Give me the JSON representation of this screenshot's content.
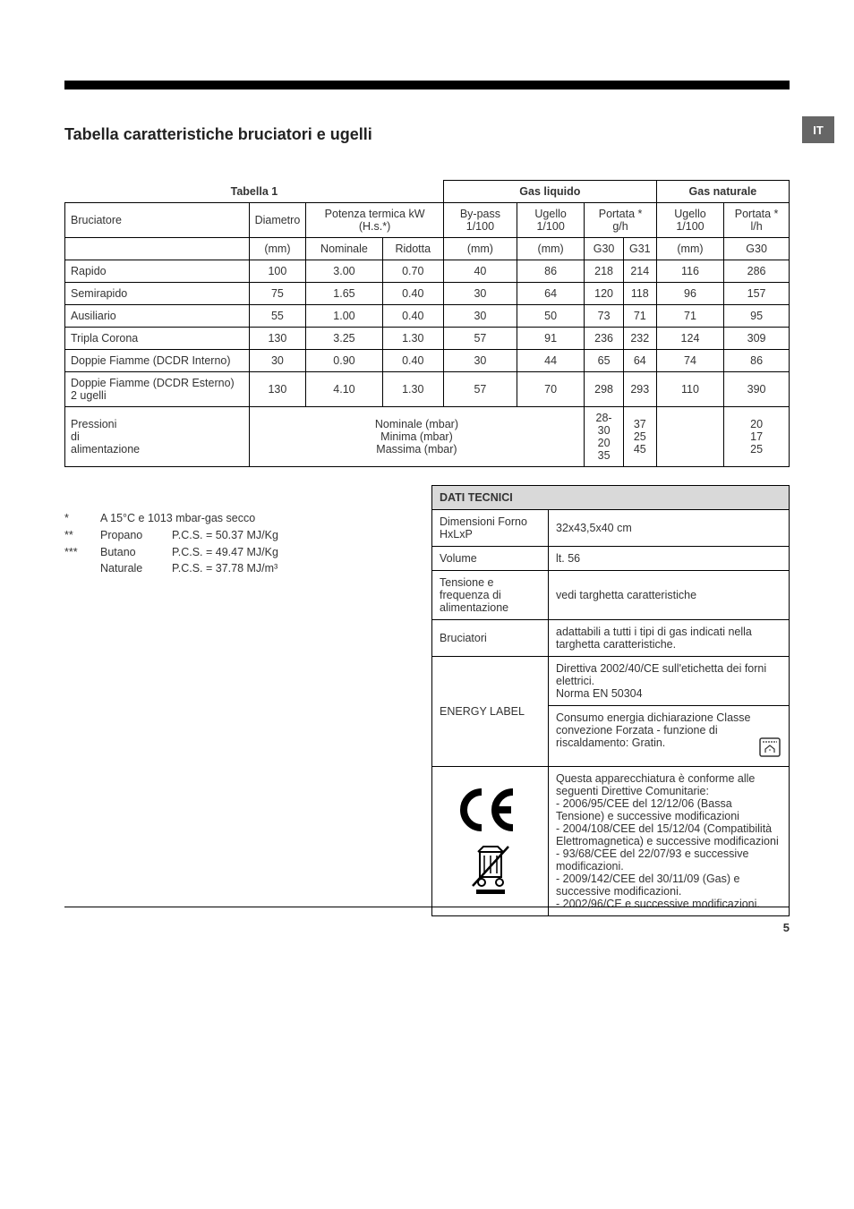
{
  "lang_tab": "IT",
  "page_number": "5",
  "section_title": "Tabella caratteristiche bruciatori e ugelli",
  "table1": {
    "label": "Tabella 1",
    "group_liquid": "Gas liquido",
    "group_natural": "Gas naturale",
    "h_bruciatore": "Bruciatore",
    "h_diametro": "Diametro",
    "h_potenza": "Potenza termica kW (H.s.*)",
    "h_bypass": "By-pass 1/100",
    "h_ugello": "Ugello 1/100",
    "h_portata_gh": "Portata * g/h",
    "h_ugello2": "Ugello 1/100",
    "h_portata_lh": "Portata * l/h",
    "u_mm": "(mm)",
    "u_nominale": "Nominale",
    "u_ridotta": "Ridotta",
    "u_g30": "G30",
    "u_g31": "G31",
    "rows": [
      {
        "name": "Rapido",
        "dia": "100",
        "nom": "3.00",
        "rid": "0.70",
        "bp": "40",
        "ug1": "86",
        "g30": "218",
        "g31": "214",
        "ug2": "116",
        "nat": "286"
      },
      {
        "name": "Semirapido",
        "dia": "75",
        "nom": "1.65",
        "rid": "0.40",
        "bp": "30",
        "ug1": "64",
        "g30": "120",
        "g31": "118",
        "ug2": "96",
        "nat": "157"
      },
      {
        "name": "Ausiliario",
        "dia": "55",
        "nom": "1.00",
        "rid": "0.40",
        "bp": "30",
        "ug1": "50",
        "g30": "73",
        "g31": "71",
        "ug2": "71",
        "nat": "95"
      },
      {
        "name": "Tripla Corona",
        "dia": "130",
        "nom": "3.25",
        "rid": "1.30",
        "bp": "57",
        "ug1": "91",
        "g30": "236",
        "g31": "232",
        "ug2": "124",
        "nat": "309"
      },
      {
        "name": "Doppie Fiamme (DCDR Interno)",
        "dia": "30",
        "nom": "0.90",
        "rid": "0.40",
        "bp": "30",
        "ug1": "44",
        "g30": "65",
        "g31": "64",
        "ug2": "74",
        "nat": "86"
      },
      {
        "name": "Doppie Fiamme (DCDR Esterno) 2 ugelli",
        "dia": "130",
        "nom": "4.10",
        "rid": "1.30",
        "bp": "57",
        "ug1": "70",
        "g30": "298",
        "g31": "293",
        "ug2": "110",
        "nat": "390"
      }
    ],
    "pressure_label": "Pressioni di alimentazione",
    "pressure_lines": "Nominale (mbar)\nMinima (mbar)\nMassima (mbar)",
    "pressure_g30": "28-30\n20\n35",
    "pressure_g31": "37\n25\n45",
    "pressure_nat": "20\n17\n25"
  },
  "footnotes": {
    "l1_star": "*",
    "l1_text": "A 15°C e 1013 mbar-gas secco",
    "l2_star": "**",
    "l2_gas": "Propano",
    "l2_val": "P.C.S. = 50.37 MJ/Kg",
    "l3_star": "***",
    "l3_gas": "Butano",
    "l3_val": "P.C.S. = 49.47 MJ/Kg",
    "l4_gas": "Naturale",
    "l4_val": "P.C.S. = 37.78 MJ/m³"
  },
  "tech": {
    "title": "DATI TECNICI",
    "dim_label": "Dimensioni Forno HxLxP",
    "dim_val": "32x43,5x40 cm",
    "vol_label": "Volume",
    "vol_val": "lt. 56",
    "tens_label": "Tensione e frequenza di alimentazione",
    "tens_val": "vedi targhetta caratteristiche",
    "bruc_label": "Bruciatori",
    "bruc_val": "adattabili a tutti i tipi di gas indicati nella targhetta caratteristiche.",
    "energy_label": "ENERGY LABEL",
    "energy_val1": "Direttiva 2002/40/CE sull'etichetta dei forni elettrici.\nNorma EN 50304",
    "energy_val2": "Consumo energia dichiarazione Classe convezione Forzata - funzione di riscaldamento: Gratin.",
    "ce_val": "Questa apparecchiatura è conforme alle seguenti Direttive Comunitarie:\n- 2006/95/CEE del 12/12/06 (Bassa Tensione) e successive modificazioni\n- 2004/108/CEE del 15/12/04 (Compatibilità Elettromagnetica) e successive modificazioni\n- 93/68/CEE del 22/07/93 e successive modificazioni.\n- 2009/142/CEE del 30/11/09 (Gas) e successive modificazioni.\n- 2002/96/CE e successive modificazioni."
  }
}
